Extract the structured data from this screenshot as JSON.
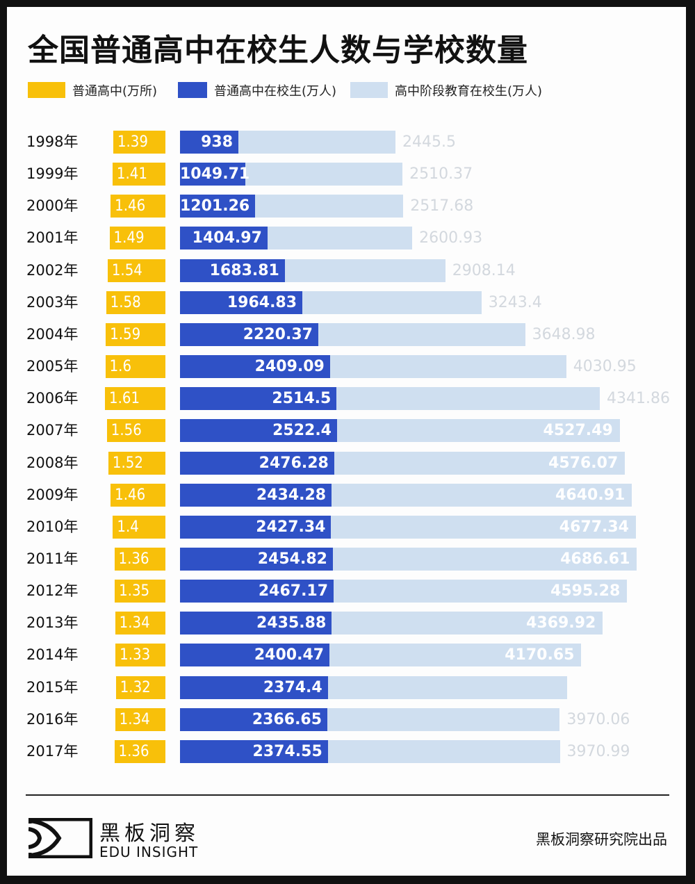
{
  "title": "全国普通高中在校生人数与学校数量",
  "legend": [
    {
      "label": "普通高中(万所)",
      "color": "#f8c00a"
    },
    {
      "label": "普通高中在校生(万人)",
      "color": "#2f51c6"
    },
    {
      "label": "高中阶段教育在校生(万人)",
      "color": "#cfdff0"
    }
  ],
  "footer": {
    "brand_cn": "黑板洞察",
    "brand_en": "EDU INSIGHT",
    "credit": "黑板洞察研究院出品"
  },
  "chart_data": {
    "type": "bar",
    "orientation": "horizontal",
    "title": "全国普通高中在校生人数与学校数量",
    "categories": [
      "1998年",
      "1999年",
      "2000年",
      "2001年",
      "2002年",
      "2003年",
      "2004年",
      "2005年",
      "2006年",
      "2007年",
      "2008年",
      "2009年",
      "2010年",
      "2011年",
      "2012年",
      "2013年",
      "2014年",
      "2015年",
      "2016年",
      "2017年"
    ],
    "series": [
      {
        "name": "普通高中(万所)",
        "color": "#f8c00a",
        "values": [
          1.39,
          1.41,
          1.46,
          1.49,
          1.54,
          1.58,
          1.59,
          1.6,
          1.61,
          1.56,
          1.52,
          1.46,
          1.4,
          1.36,
          1.35,
          1.34,
          1.33,
          1.32,
          1.34,
          1.36
        ],
        "labels": [
          "1.39",
          "1.41",
          "1.46",
          "1.49",
          "1.54",
          "1.58",
          "1.59",
          "1.6",
          "1.61",
          "1.56",
          "1.52",
          "1.46",
          "1.4",
          "1.36",
          "1.35",
          "1.34",
          "1.33",
          "1.32",
          "1.34",
          "1.36"
        ]
      },
      {
        "name": "普通高中在校生(万人)",
        "color": "#2f51c6",
        "values": [
          938,
          1049.71,
          1201.26,
          1404.97,
          1683.81,
          1964.83,
          2220.37,
          2409.09,
          2514.5,
          2522.4,
          2476.28,
          2434.28,
          2427.34,
          2454.82,
          2467.17,
          2435.88,
          2400.47,
          2374.4,
          2366.65,
          2374.55
        ],
        "labels": [
          "938",
          "1049.71",
          "1201.26",
          "1404.97",
          "1683.81",
          "1964.83",
          "2220.37",
          "2409.09",
          "2514.5",
          "2522.4",
          "2476.28",
          "2434.28",
          "2427.34",
          "2454.82",
          "2467.17",
          "2435.88",
          "2400.47",
          "2374.4",
          "2366.65",
          "2374.55"
        ]
      },
      {
        "name": "高中阶段教育在校生(万人)",
        "color": "#cfdff0",
        "values": [
          2445.5,
          2510.37,
          2517.68,
          2600.93,
          2908.14,
          3243.4,
          3648.98,
          4030.95,
          4341.86,
          4527.49,
          4576.07,
          4640.91,
          4677.34,
          4686.61,
          4595.28,
          4369.92,
          4170.65,
          4037,
          3970.06,
          3970.99
        ],
        "labels": [
          "2445.5",
          "2510.37",
          "2517.68",
          "2600.93",
          "2908.14",
          "3243.4",
          "3648.98",
          "4030.95",
          "4341.86",
          "4527.49",
          "4576.07",
          "4640.91",
          "4677.34",
          "4686.61",
          "4595.28",
          "4369.92",
          "4170.65",
          "",
          "3970.06",
          "3970.99"
        ],
        "label_inside": [
          false,
          false,
          false,
          false,
          false,
          false,
          false,
          false,
          false,
          true,
          true,
          true,
          true,
          true,
          true,
          true,
          true,
          false,
          false,
          false
        ]
      }
    ],
    "xlabel": "",
    "ylabel": "",
    "legend": "top-left",
    "grid": false
  }
}
